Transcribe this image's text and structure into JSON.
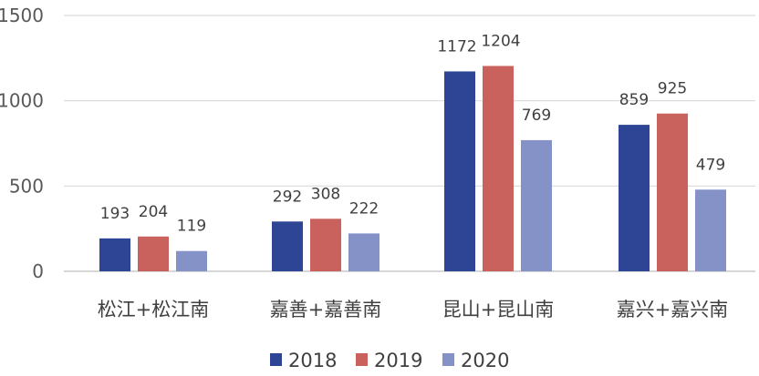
{
  "chart_data": {
    "type": "bar",
    "categories": [
      "松江+松江南",
      "嘉善+嘉善南",
      "昆山+昆山南",
      "嘉兴+嘉兴南"
    ],
    "series": [
      {
        "name": "2018",
        "color": "#2e4596",
        "values": [
          193,
          292,
          1172,
          859
        ]
      },
      {
        "name": "2019",
        "color": "#c9615c",
        "values": [
          204,
          308,
          1204,
          925
        ]
      },
      {
        "name": "2020",
        "color": "#8592c8",
        "values": [
          119,
          222,
          769,
          479
        ]
      }
    ],
    "yticks": [
      0,
      500,
      1000,
      1500
    ],
    "ylim": [
      0,
      1500
    ],
    "grid": true,
    "legend": "bottom",
    "title": "",
    "xlabel": "",
    "ylabel": ""
  }
}
